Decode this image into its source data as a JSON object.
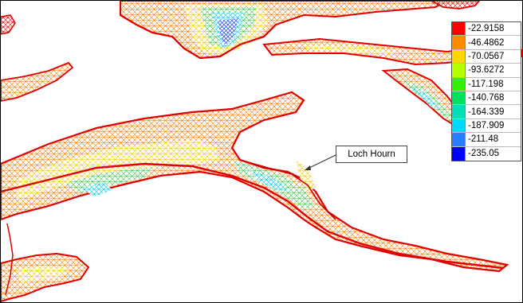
{
  "legend": {
    "entries": [
      {
        "label": "-22.9158",
        "color": "#ff0000"
      },
      {
        "label": "-46.4862",
        "color": "#ff8a00"
      },
      {
        "label": "-70.0567",
        "color": "#ffd800"
      },
      {
        "label": "-93.6272",
        "color": "#b4ff00"
      },
      {
        "label": "-117.198",
        "color": "#32f000"
      },
      {
        "label": "-140.768",
        "color": "#00e060"
      },
      {
        "label": "-164.339",
        "color": "#00e0b4"
      },
      {
        "label": "-187.909",
        "color": "#00d8ff"
      },
      {
        "label": "-211.48",
        "color": "#2a7dff"
      },
      {
        "label": "-235.05",
        "color": "#0000ff"
      }
    ]
  },
  "annotation": {
    "label": "Loch Hourn"
  },
  "colors": {
    "shore": "#e60000",
    "shallow": "#ff5a00",
    "mid": "#ffd200",
    "deep": "#30d040",
    "deepest": "#2050ff",
    "land": "#ffffff"
  }
}
